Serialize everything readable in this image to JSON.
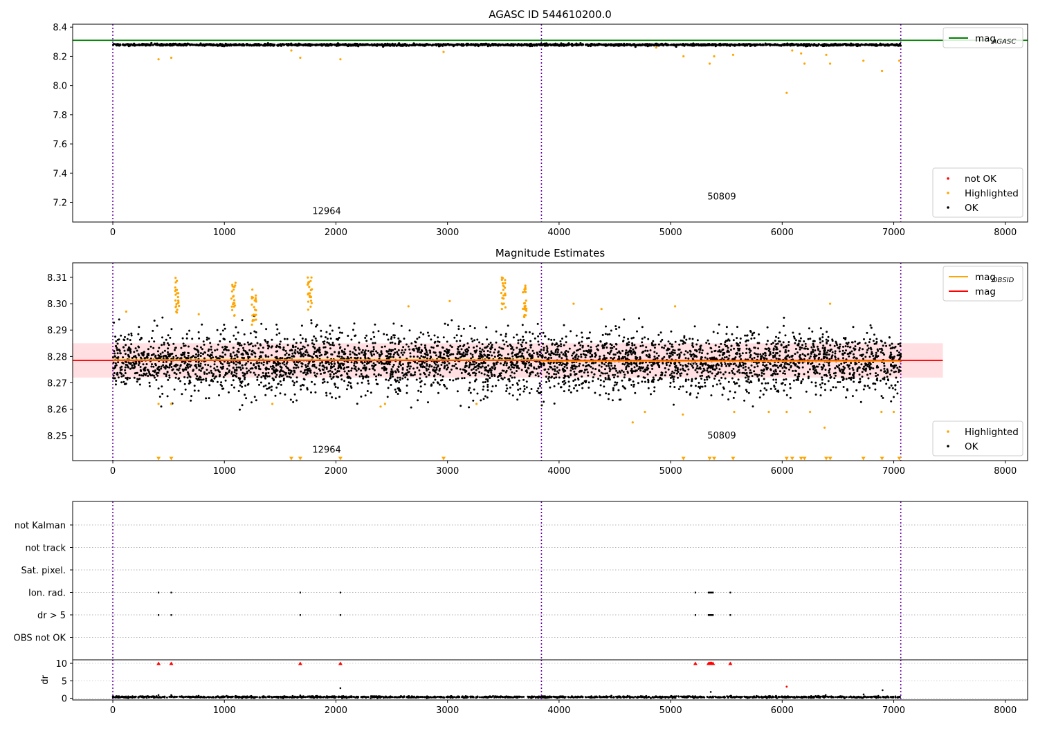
{
  "chart_data": [
    {
      "type": "scatter",
      "title": "AGASC ID 544610200.0",
      "xlim": [
        -360,
        8200
      ],
      "ylim": [
        7.065,
        8.42
      ],
      "xticks": [
        "0",
        "1000",
        "2000",
        "3000",
        "4000",
        "5000",
        "6000",
        "7000",
        "8000"
      ],
      "yticks": [
        "7.2",
        "7.4",
        "7.6",
        "7.8",
        "8.0",
        "8.2",
        "8.4"
      ],
      "vlines": [
        0,
        3842,
        7063
      ],
      "hline": {
        "name": "mag",
        "subscript": "AGASC",
        "value": 8.31,
        "color": "#008000"
      },
      "legends": [
        {
          "position": "upper-right",
          "entries": [
            {
              "label": "mag",
              "sub": "AGASC",
              "kind": "line",
              "color": "#008000"
            }
          ]
        },
        {
          "position": "lower-right",
          "entries": [
            {
              "label": "not OK",
              "kind": "dot",
              "color": "#ff0000"
            },
            {
              "label": "Highlighted",
              "kind": "dot",
              "color": "#ffa500"
            },
            {
              "label": "OK",
              "kind": "dot",
              "color": "#000000"
            }
          ]
        }
      ],
      "annotations": [
        {
          "text": "12964",
          "x": 1917,
          "y": 7.12
        },
        {
          "text": "50809",
          "x": 5458,
          "y": 7.22
        }
      ],
      "series": [
        {
          "name": "OK",
          "color": "#000000",
          "x_range": [
            0,
            7063
          ],
          "center": 8.279,
          "spread": 0.004,
          "count": 1900
        },
        {
          "name": "Highlighted",
          "color": "#ffa500",
          "points": [
            [
              410,
              8.18
            ],
            [
              524,
              8.19
            ],
            [
              1600,
              8.24
            ],
            [
              1680,
              8.19
            ],
            [
              2040,
              8.18
            ],
            [
              2965,
              8.23
            ],
            [
              4870,
              8.26
            ],
            [
              5115,
              8.2
            ],
            [
              5350,
              8.15
            ],
            [
              5390,
              8.2
            ],
            [
              5560,
              8.21
            ],
            [
              6040,
              7.95
            ],
            [
              6090,
              8.24
            ],
            [
              6170,
              8.22
            ],
            [
              6200,
              8.15
            ],
            [
              6395,
              8.21
            ],
            [
              6430,
              8.15
            ],
            [
              6728,
              8.17
            ],
            [
              6895,
              8.1
            ],
            [
              7050,
              8.17
            ]
          ]
        }
      ]
    },
    {
      "type": "scatter",
      "title": "Magnitude Estimates",
      "xlim": [
        -360,
        8200
      ],
      "ylim": [
        8.2405,
        8.3155
      ],
      "xticks": [
        "0",
        "1000",
        "2000",
        "3000",
        "4000",
        "5000",
        "6000",
        "7000",
        "8000"
      ],
      "yticks": [
        "8.25",
        "8.26",
        "8.27",
        "8.28",
        "8.29",
        "8.30",
        "8.31"
      ],
      "vlines": [
        0,
        3842,
        7063
      ],
      "band": {
        "lo": 8.272,
        "hi": 8.285,
        "x_range": [
          -360,
          7440
        ],
        "color": "#ffdfe1"
      },
      "lines": [
        {
          "name": "mag",
          "subscript": "OBSID",
          "color": "#ffa500",
          "segments": [
            {
              "x": [
                0,
                3842
              ],
              "y": 8.2787
            },
            {
              "x": [
                3842,
                7063
              ],
              "y": 8.2782
            }
          ]
        },
        {
          "name": "mag",
          "color": "#ff0000",
          "x": [
            -360,
            7440
          ],
          "y": 8.2785
        }
      ],
      "legends": [
        {
          "position": "upper-right",
          "entries": [
            {
              "label": "mag",
              "sub": "OBSID",
              "kind": "line",
              "color": "#ffa500"
            },
            {
              "label": "mag",
              "kind": "line",
              "color": "#ff0000"
            }
          ]
        },
        {
          "position": "lower-right",
          "entries": [
            {
              "label": "Highlighted",
              "kind": "dot",
              "color": "#ffa500"
            },
            {
              "label": "OK",
              "kind": "dot",
              "color": "#000000"
            }
          ]
        }
      ],
      "annotations": [
        {
          "text": "12964",
          "x": 1917,
          "y": 8.2435
        },
        {
          "text": "50809",
          "x": 5458,
          "y": 8.2489
        }
      ],
      "series": [
        {
          "name": "OK",
          "color": "#000000",
          "x_range": [
            0,
            7063
          ],
          "center": 8.278,
          "spread": 0.0055,
          "count": 4200
        },
        {
          "name": "Highlighted",
          "color": "#ffa500",
          "clusters": [
            [
              576,
              8.303
            ],
            [
              1081,
              8.302
            ],
            [
              1265,
              8.299
            ],
            [
              1766,
              8.303
            ],
            [
              3500,
              8.305
            ],
            [
              3692,
              8.301
            ]
          ],
          "points": [
            [
              410,
              8.262
            ],
            [
              524,
              8.262
            ],
            [
              1430,
              8.262
            ],
            [
              2400,
              8.261
            ],
            [
              2440,
              8.262
            ],
            [
              3260,
              8.262
            ],
            [
              3020,
              8.301
            ],
            [
              4660,
              8.255
            ],
            [
              4770,
              8.259
            ],
            [
              5040,
              8.299
            ],
            [
              5110,
              8.258
            ],
            [
              5570,
              8.259
            ],
            [
              5880,
              8.259
            ],
            [
              6040,
              8.259
            ],
            [
              6250,
              8.259
            ],
            [
              6380,
              8.253
            ],
            [
              6430,
              8.3
            ],
            [
              6890,
              8.259
            ],
            [
              7000,
              8.259
            ],
            [
              770,
              8.296
            ],
            [
              120,
              8.297
            ],
            [
              2650,
              8.299
            ],
            [
              4130,
              8.3
            ],
            [
              4380,
              8.298
            ]
          ]
        },
        {
          "name": "below range",
          "color": "#ffa500",
          "marker": "triangle-down",
          "x": [
            410,
            524,
            1600,
            1680,
            2040,
            2965,
            5115,
            5350,
            5390,
            5560,
            6040,
            6090,
            6170,
            6200,
            6395,
            6430,
            6728,
            6895,
            7050
          ]
        }
      ]
    },
    {
      "type": "scatter",
      "title": "",
      "xlim": [
        -360,
        8200
      ],
      "categories": [
        "not Kalman",
        "not track",
        "Sat. pixel.",
        "Ion. rad.",
        "dr > 5",
        "OBS not OK"
      ],
      "flags": {
        "Ion. rad.": [
          410,
          524,
          1680,
          2040,
          5222,
          5340,
          5350,
          5355,
          5360,
          5365,
          5370,
          5380,
          5535
        ],
        "dr > 5": [
          410,
          524,
          1680,
          2040,
          5222,
          5340,
          5350,
          5355,
          5360,
          5365,
          5370,
          5380,
          5535
        ]
      },
      "vlines": [
        0,
        3842,
        7063
      ]
    },
    {
      "type": "scatter",
      "title": "",
      "xlim": [
        -360,
        8200
      ],
      "ylim": [
        -0.5,
        11
      ],
      "ylabel": "dr",
      "xticks": [
        "0",
        "1000",
        "2000",
        "3000",
        "4000",
        "5000",
        "6000",
        "7000",
        "8000"
      ],
      "yticks": [
        "0",
        "5",
        "10"
      ],
      "vlines": [
        0,
        3842,
        7063
      ],
      "series": [
        {
          "name": "OK",
          "color": "#000000",
          "x_range": [
            0,
            7063
          ],
          "center": 0.35,
          "spread": 0.12,
          "count": 1500
        },
        {
          "name": "clipped",
          "color": "#ff0000",
          "marker": "triangle-up",
          "x": [
            410,
            524,
            1680,
            2040,
            5222,
            5340,
            5350,
            5355,
            5360,
            5365,
            5370,
            5380,
            5535
          ],
          "y": 10
        },
        {
          "name": "outliers",
          "color": "#ff0000",
          "points": [
            [
              6040,
              3.3
            ]
          ]
        },
        {
          "name": "outliers-ok",
          "color": "#000000",
          "points": [
            [
              2040,
              2.9
            ],
            [
              5360,
              1.8
            ],
            [
              6900,
              2.3
            ],
            [
              6390,
              0.9
            ],
            [
              1680,
              0.8
            ],
            [
              410,
              0.9
            ],
            [
              524,
              0.9
            ],
            [
              6730,
              1.1
            ]
          ]
        }
      ]
    }
  ]
}
